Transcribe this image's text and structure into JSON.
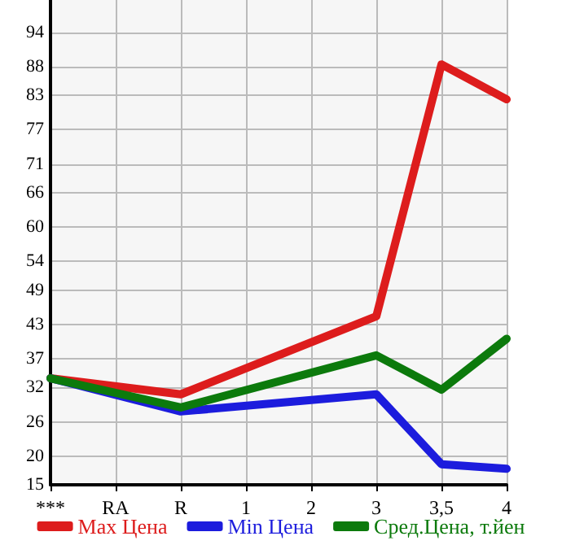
{
  "chart_data": {
    "type": "line",
    "categories": [
      "***",
      "RA",
      "R",
      "1",
      "2",
      "3",
      "3,5",
      "4"
    ],
    "series": [
      {
        "name": "Max Цена",
        "color": "#dd1c1c",
        "values": [
          33.6,
          null,
          30.8,
          null,
          null,
          44.4,
          88.4,
          82.3
        ]
      },
      {
        "name": "Min Цена",
        "color": "#1c1cdd",
        "values": [
          33.6,
          null,
          27.8,
          null,
          null,
          30.8,
          18.6,
          17.8
        ]
      },
      {
        "name": "Сред.Цена, т.йен",
        "color": "#0c7a0c",
        "values": [
          33.6,
          null,
          28.5,
          null,
          null,
          37.6,
          31.6,
          40.5
        ]
      }
    ],
    "ylim": [
      15,
      99.64
    ],
    "yticks": [
      15,
      20,
      26,
      32,
      37,
      43,
      49,
      54,
      60,
      66,
      71,
      77,
      83,
      88,
      94
    ],
    "grid": true,
    "legend": "bottom",
    "marker": "none",
    "line_style": "solid"
  }
}
